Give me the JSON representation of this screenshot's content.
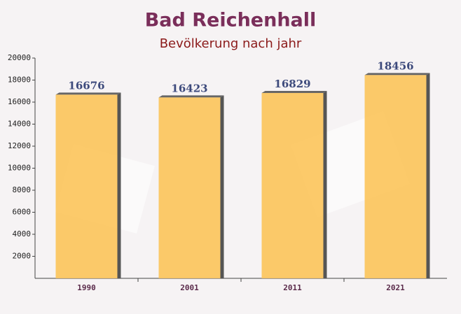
{
  "chart_data": {
    "type": "bar",
    "title": "Bad Reichenhall",
    "subtitle": "Bevölkerung nach jahr",
    "categories": [
      "1990",
      "2001",
      "2011",
      "2021"
    ],
    "values": [
      16676,
      16423,
      16829,
      18456
    ],
    "color": "#fcc45a",
    "ylim": [
      0,
      20000
    ],
    "yticks": [
      2000,
      4000,
      6000,
      8000,
      10000,
      12000,
      14000,
      16000,
      18000,
      20000
    ],
    "grid": false
  }
}
